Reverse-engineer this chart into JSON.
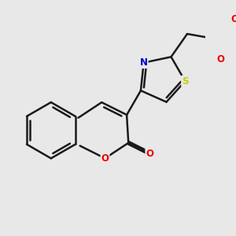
{
  "background_color": "#e8e8e8",
  "bond_color": "#1a1a1a",
  "atom_colors": {
    "N": "#0000cc",
    "O": "#ee0000",
    "S": "#cccc00",
    "C": "#1a1a1a"
  },
  "bond_width": 1.8,
  "font_size": 8.5,
  "figsize": [
    3.0,
    3.0
  ],
  "dpi": 100
}
